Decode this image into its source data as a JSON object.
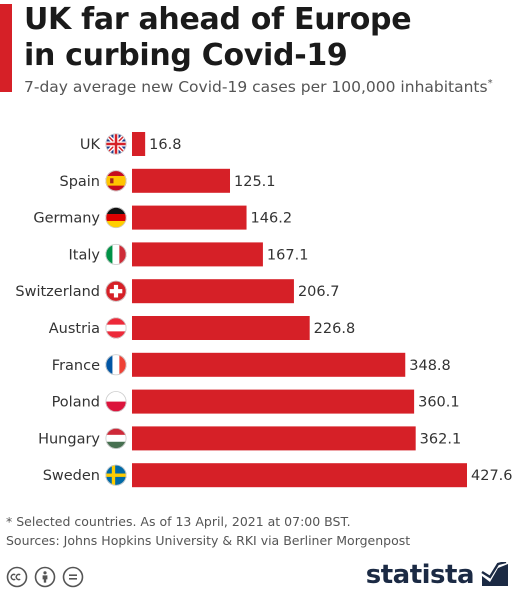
{
  "header": {
    "title_line1": "UK far ahead of Europe",
    "title_line2": "in curbing Covid-19",
    "subtitle": "7-day average new Covid-19 cases per 100,000 inhabitants",
    "subtitle_mark": "*"
  },
  "chart_data": {
    "type": "bar",
    "orientation": "horizontal",
    "categories": [
      "UK",
      "Spain",
      "Germany",
      "Italy",
      "Switzerland",
      "Austria",
      "France",
      "Poland",
      "Hungary",
      "Sweden"
    ],
    "values": [
      16.8,
      125.1,
      146.2,
      167.1,
      206.7,
      226.8,
      348.8,
      360.1,
      362.1,
      427.6
    ],
    "value_labels": [
      "16.8",
      "125.1",
      "146.2",
      "167.1",
      "206.7",
      "226.8",
      "348.8",
      "360.1",
      "362.1",
      "427.6"
    ],
    "flag_icons": [
      "uk-flag-icon",
      "spain-flag-icon",
      "germany-flag-icon",
      "italy-flag-icon",
      "switzerland-flag-icon",
      "austria-flag-icon",
      "france-flag-icon",
      "poland-flag-icon",
      "hungary-flag-icon",
      "sweden-flag-icon"
    ],
    "bar_color": "#d62027",
    "grid": false,
    "legend": "none"
  },
  "footer": {
    "note": "* Selected countries. As of 13 April, 2021 at 07:00 BST.",
    "sources": "Sources: Johns Hopkins University & RKI via Berliner Morgenpost",
    "license_icons": [
      "cc-icon",
      "attribution-icon",
      "no-derivatives-icon"
    ],
    "brand": "statista"
  },
  "colors": {
    "accent": "#d62027",
    "brand": "#1b2a44"
  }
}
